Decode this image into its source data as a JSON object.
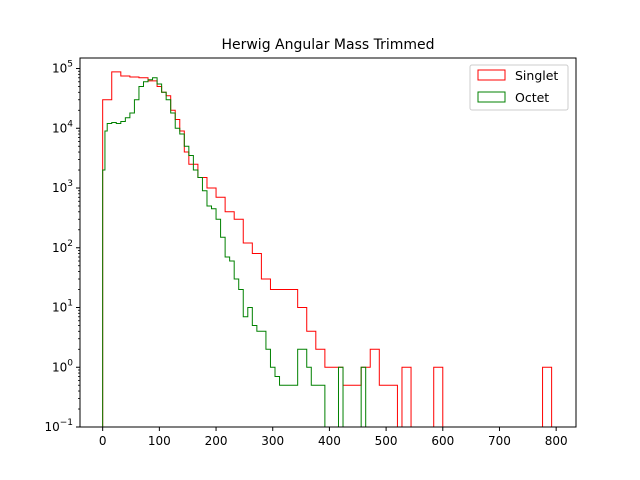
{
  "chart_data": {
    "type": "histogram-step",
    "title": "Herwig Angular Mass Trimmed",
    "xlabel": "",
    "ylabel": "",
    "yscale": "log",
    "xlim": [
      -40,
      835
    ],
    "ylim": [
      0.1,
      150000
    ],
    "xticks": [
      0,
      100,
      200,
      300,
      400,
      500,
      600,
      700,
      800
    ],
    "ytick_labels": [
      "10^-1",
      "10^0",
      "10^1",
      "10^2",
      "10^3",
      "10^4",
      "10^5"
    ],
    "legend_position": "top-right",
    "series": [
      {
        "name": "Singlet",
        "color": "#ff0000",
        "bins": [
          [
            0,
            16,
            30000
          ],
          [
            16,
            32,
            88000
          ],
          [
            32,
            48,
            75000
          ],
          [
            48,
            64,
            72000
          ],
          [
            64,
            80,
            70000
          ],
          [
            80,
            96,
            62000
          ],
          [
            96,
            104,
            50000
          ],
          [
            104,
            112,
            40000
          ],
          [
            112,
            120,
            35000
          ],
          [
            120,
            128,
            20000
          ],
          [
            128,
            136,
            14000
          ],
          [
            136,
            144,
            9000
          ],
          [
            144,
            152,
            4000
          ],
          [
            152,
            168,
            2500
          ],
          [
            168,
            184,
            1500
          ],
          [
            184,
            200,
            1000
          ],
          [
            200,
            216,
            700
          ],
          [
            216,
            232,
            400
          ],
          [
            232,
            248,
            300
          ],
          [
            248,
            264,
            120
          ],
          [
            264,
            280,
            80
          ],
          [
            280,
            296,
            30
          ],
          [
            296,
            312,
            20
          ],
          [
            312,
            328,
            20
          ],
          [
            328,
            344,
            20
          ],
          [
            344,
            360,
            10
          ],
          [
            360,
            376,
            4
          ],
          [
            376,
            392,
            2
          ],
          [
            392,
            408,
            1
          ],
          [
            408,
            424,
            1
          ],
          [
            424,
            440,
            0.5
          ],
          [
            440,
            456,
            0.5
          ],
          [
            456,
            472,
            1
          ],
          [
            472,
            488,
            2
          ],
          [
            488,
            504,
            0.5
          ],
          [
            504,
            520,
            0.5
          ]
        ]
      },
      {
        "name": "Octet",
        "color": "#008000",
        "bins": [
          [
            0,
            4,
            2000
          ],
          [
            4,
            8,
            9000
          ],
          [
            8,
            16,
            12000
          ],
          [
            16,
            24,
            12500
          ],
          [
            24,
            32,
            12000
          ],
          [
            32,
            40,
            13000
          ],
          [
            40,
            48,
            15000
          ],
          [
            48,
            56,
            18000
          ],
          [
            56,
            64,
            30000
          ],
          [
            64,
            72,
            50000
          ],
          [
            72,
            80,
            60000
          ],
          [
            80,
            88,
            65000
          ],
          [
            88,
            96,
            70000
          ],
          [
            96,
            104,
            55000
          ],
          [
            104,
            112,
            40000
          ],
          [
            112,
            120,
            30000
          ],
          [
            120,
            128,
            18000
          ],
          [
            128,
            136,
            10000
          ],
          [
            136,
            144,
            8000
          ],
          [
            144,
            152,
            5000
          ],
          [
            152,
            160,
            3500
          ],
          [
            160,
            168,
            2000
          ],
          [
            168,
            176,
            1500
          ],
          [
            176,
            184,
            900
          ],
          [
            184,
            192,
            500
          ],
          [
            192,
            200,
            450
          ],
          [
            200,
            208,
            300
          ],
          [
            208,
            216,
            150
          ],
          [
            216,
            224,
            70
          ],
          [
            224,
            232,
            60
          ],
          [
            232,
            240,
            30
          ],
          [
            240,
            248,
            20
          ],
          [
            248,
            256,
            7
          ],
          [
            256,
            264,
            10
          ],
          [
            264,
            272,
            5
          ],
          [
            272,
            288,
            4
          ],
          [
            288,
            296,
            2
          ],
          [
            296,
            304,
            1
          ],
          [
            304,
            312,
            0.7
          ],
          [
            312,
            320,
            0.5
          ],
          [
            320,
            328,
            0.5
          ],
          [
            328,
            336,
            0.5
          ],
          [
            336,
            344,
            0.5
          ],
          [
            344,
            352,
            2
          ],
          [
            352,
            360,
            2
          ],
          [
            360,
            368,
            1
          ],
          [
            368,
            376,
            0.5
          ],
          [
            376,
            384,
            0.5
          ],
          [
            384,
            392,
            0.5
          ]
        ]
      }
    ],
    "extra_spikes": [
      {
        "series": "Singlet",
        "bins": [
          [
            528,
            544,
            1
          ],
          [
            584,
            600,
            1
          ],
          [
            776,
            792,
            1
          ]
        ]
      },
      {
        "series": "Octet",
        "bins": [
          [
            416,
            424,
            1
          ],
          [
            456,
            464,
            1
          ]
        ]
      }
    ]
  }
}
